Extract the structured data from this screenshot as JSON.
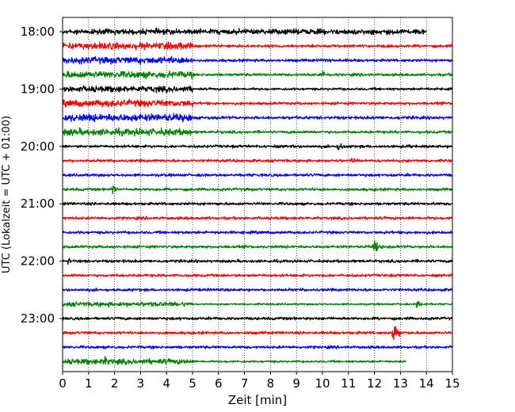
{
  "chart_data": {
    "type": "line",
    "title": "",
    "xlabel": "Zeit  [min]",
    "ylabel": "UTC (Lokalzeit = UTC + 01:00)",
    "xlim": [
      0,
      15
    ],
    "x_ticks": [
      "0",
      "1",
      "2",
      "3",
      "4",
      "5",
      "6",
      "7",
      "8",
      "9",
      "10",
      "11",
      "12",
      "13",
      "14",
      "15"
    ],
    "y_ticks": [
      "18:00",
      "19:00",
      "20:00",
      "21:00",
      "22:00",
      "23:00"
    ],
    "grid": "vertical-dotted",
    "trace_interval_min": 15,
    "colors": [
      "#000000",
      "#ff0000",
      "#0000ff",
      "#008000"
    ],
    "traces": [
      {
        "start": "18:00",
        "end_min": 14.0,
        "noisy_until_min": 15,
        "amp": 0.35,
        "events": [
          {
            "t": 14.0,
            "amp": 0.5
          }
        ]
      },
      {
        "start": "18:15",
        "end_min": 15,
        "noisy_until_min": 5.0,
        "amp": 0.45,
        "events": []
      },
      {
        "start": "18:30",
        "end_min": 15,
        "noisy_until_min": 5.0,
        "amp": 0.45,
        "events": [
          {
            "t": 10.0,
            "amp": 0.35
          }
        ]
      },
      {
        "start": "18:45",
        "end_min": 15,
        "noisy_until_min": 5.0,
        "amp": 0.45,
        "events": [
          {
            "t": 10.0,
            "amp": 0.6
          }
        ]
      },
      {
        "start": "19:00",
        "end_min": 15,
        "noisy_until_min": 5.0,
        "amp": 0.4,
        "events": [
          {
            "t": 14.0,
            "amp": 0.4
          }
        ]
      },
      {
        "start": "19:15",
        "end_min": 15,
        "noisy_until_min": 5.0,
        "amp": 0.45,
        "events": []
      },
      {
        "start": "19:30",
        "end_min": 15,
        "noisy_until_min": 5.0,
        "amp": 0.5,
        "events": []
      },
      {
        "start": "19:45",
        "end_min": 15,
        "noisy_until_min": 5.0,
        "amp": 0.45,
        "events": []
      },
      {
        "start": "20:00",
        "end_min": 15,
        "noisy_until_min": 0,
        "amp": 0.25,
        "events": [
          {
            "t": 10.6,
            "amp": 0.8
          },
          {
            "t": 13.3,
            "amp": 0.4
          }
        ]
      },
      {
        "start": "20:15",
        "end_min": 15,
        "noisy_until_min": 0,
        "amp": 0.25,
        "events": [
          {
            "t": 11.1,
            "amp": 0.7
          }
        ]
      },
      {
        "start": "20:30",
        "end_min": 15,
        "noisy_until_min": 0,
        "amp": 0.25,
        "events": []
      },
      {
        "start": "20:45",
        "end_min": 15,
        "noisy_until_min": 0,
        "amp": 0.25,
        "events": [
          {
            "t": 1.9,
            "amp": 0.9
          }
        ]
      },
      {
        "start": "21:00",
        "end_min": 15,
        "noisy_until_min": 0,
        "amp": 0.25,
        "events": []
      },
      {
        "start": "21:15",
        "end_min": 15,
        "noisy_until_min": 0,
        "amp": 0.25,
        "events": []
      },
      {
        "start": "21:30",
        "end_min": 15,
        "noisy_until_min": 0,
        "amp": 0.25,
        "events": []
      },
      {
        "start": "21:45",
        "end_min": 15,
        "noisy_until_min": 0,
        "amp": 0.25,
        "events": [
          {
            "t": 12.0,
            "amp": 1.2
          }
        ]
      },
      {
        "start": "22:00",
        "end_min": 15,
        "noisy_until_min": 0,
        "amp": 0.25,
        "events": [
          {
            "t": 0.2,
            "amp": 0.5
          }
        ]
      },
      {
        "start": "22:15",
        "end_min": 15,
        "noisy_until_min": 0,
        "amp": 0.25,
        "events": []
      },
      {
        "start": "22:30",
        "end_min": 15,
        "noisy_until_min": 0,
        "amp": 0.25,
        "events": []
      },
      {
        "start": "22:45",
        "end_min": 15,
        "noisy_until_min": 5.0,
        "amp": 0.3,
        "events": [
          {
            "t": 13.6,
            "amp": 0.8
          }
        ]
      },
      {
        "start": "23:00",
        "end_min": 15,
        "noisy_until_min": 0,
        "amp": 0.25,
        "events": []
      },
      {
        "start": "23:15",
        "end_min": 15,
        "noisy_until_min": 0,
        "amp": 0.25,
        "events": [
          {
            "t": 12.7,
            "amp": 1.8
          }
        ]
      },
      {
        "start": "23:30",
        "end_min": 15,
        "noisy_until_min": 0,
        "amp": 0.25,
        "events": []
      },
      {
        "start": "23:45",
        "end_min": 13.2,
        "noisy_until_min": 5.0,
        "amp": 0.35,
        "events": [
          {
            "t": 1.6,
            "amp": 0.8
          }
        ]
      }
    ]
  }
}
